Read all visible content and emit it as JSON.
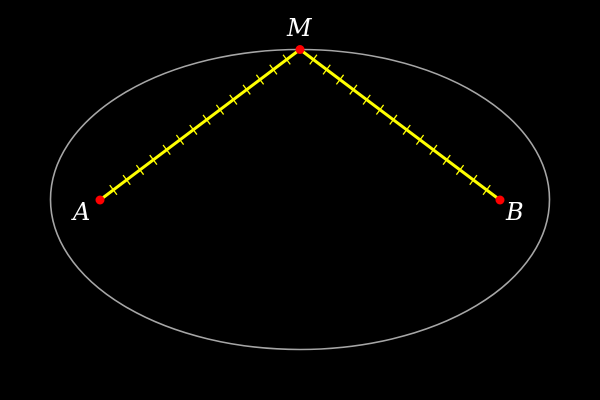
{
  "diagram": {
    "colors": {
      "background": "#000000",
      "ellipse": "#a6a6a6",
      "segment": "#ffff00",
      "tick": "#ffff00",
      "point": "#ff0000",
      "label": "#ffffff"
    },
    "points": [
      {
        "id": "A",
        "label": "A"
      },
      {
        "id": "M",
        "label": "M"
      },
      {
        "id": "B",
        "label": "B"
      }
    ],
    "segments": [
      {
        "from": "A",
        "to": "M",
        "ticks": 14
      },
      {
        "from": "M",
        "to": "B",
        "ticks": 14
      }
    ]
  }
}
